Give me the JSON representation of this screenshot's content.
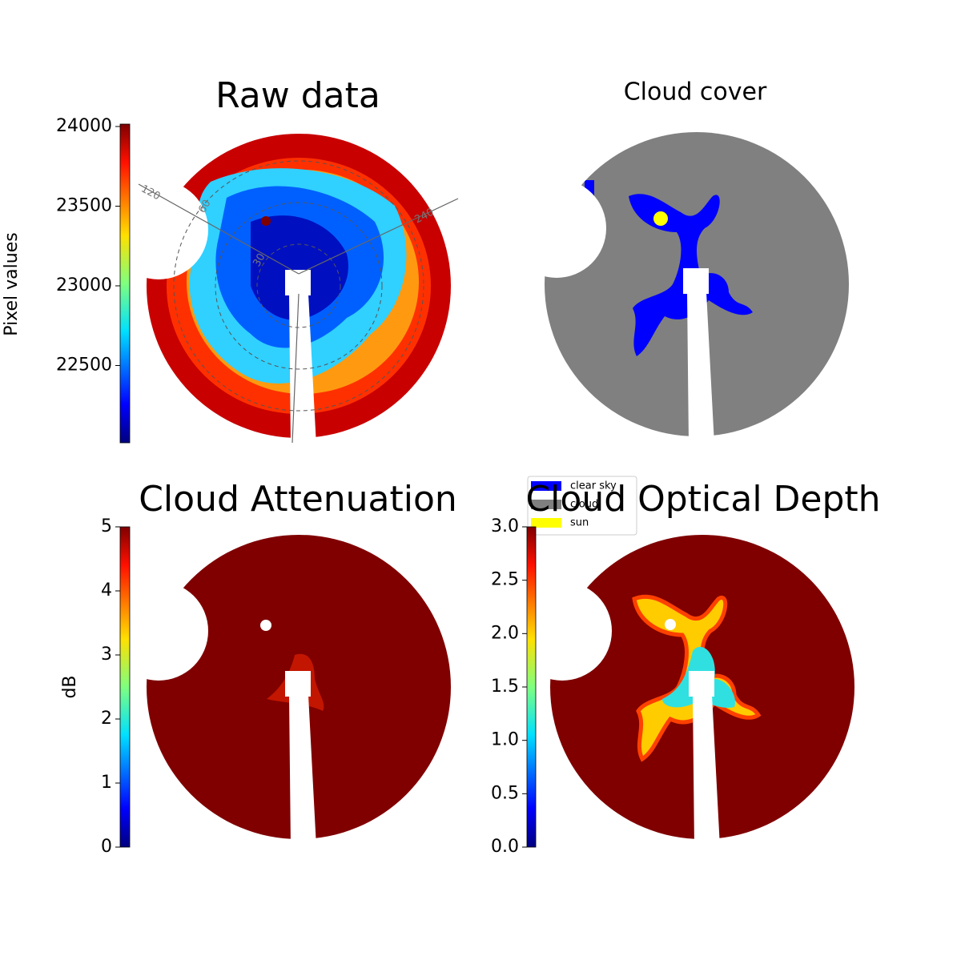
{
  "chart_data": [
    {
      "type": "image",
      "title": "Raw data",
      "colorbar": {
        "label": "Pixel values",
        "lim": [
          22015,
          24015
        ],
        "ticks": [
          22500,
          23000,
          23500,
          24000
        ]
      },
      "annotations": [
        "120",
        "240",
        "60",
        "30"
      ]
    },
    {
      "type": "image",
      "title": "Cloud cover",
      "series": [
        {
          "name": "clear sky",
          "color": "#0000ff"
        },
        {
          "name": "cloud",
          "color": "#808080"
        },
        {
          "name": "sun",
          "color": "#ffff00"
        }
      ]
    },
    {
      "type": "image",
      "title": "Cloud Attenuation",
      "colorbar": {
        "label": "dB",
        "lim": [
          0,
          5
        ],
        "ticks": [
          0,
          1,
          2,
          3,
          4,
          5
        ]
      }
    },
    {
      "type": "image",
      "title": "Cloud Optical Depth",
      "colorbar": {
        "lim": [
          0,
          3
        ],
        "ticks": [
          {
            "value": 0,
            "label": "0.0"
          },
          0.5,
          {
            "value": 1,
            "label": "1.0"
          },
          1.5,
          {
            "value": 2,
            "label": "2.0"
          },
          2.5,
          {
            "value": 3,
            "label": "3.0"
          }
        ]
      }
    }
  ]
}
